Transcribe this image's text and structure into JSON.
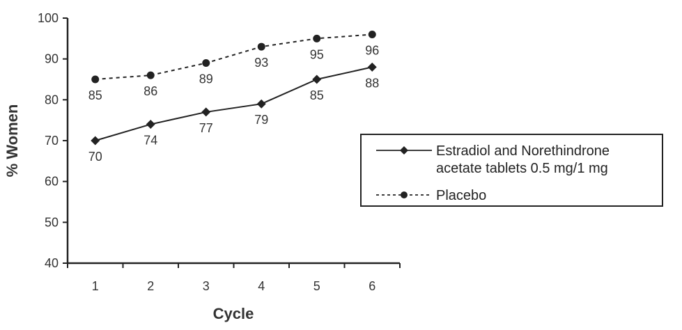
{
  "chart_data": {
    "type": "line",
    "title": "",
    "xlabel": "Cycle",
    "ylabel": "% Women",
    "categories": [
      "1",
      "2",
      "3",
      "4",
      "5",
      "6"
    ],
    "ylim": [
      40,
      100
    ],
    "yticks": [
      "40",
      "50",
      "60",
      "70",
      "80",
      "90",
      "100"
    ],
    "grid": false,
    "legend_position": "right",
    "series": [
      {
        "name": "Estradiol and Norethindrone acetate tablets 0.5 mg/1 mg",
        "legend_lines": [
          "Estradiol and Norethindrone",
          "acetate tablets 0.5 mg/1 mg"
        ],
        "marker": "diamond",
        "line_style": "solid",
        "values": [
          70,
          74,
          77,
          79,
          85,
          88
        ],
        "labels": [
          "70",
          "74",
          "77",
          "79",
          "85",
          "88"
        ]
      },
      {
        "name": "Placebo",
        "legend_lines": [
          "Placebo"
        ],
        "marker": "circle",
        "line_style": "dashed",
        "values": [
          85,
          86,
          89,
          93,
          95,
          96
        ],
        "labels": [
          "85",
          "86",
          "89",
          "93",
          "95",
          "96"
        ]
      }
    ],
    "colors": {
      "line": "#222222",
      "axis": "#222222",
      "text": "#333333"
    }
  }
}
